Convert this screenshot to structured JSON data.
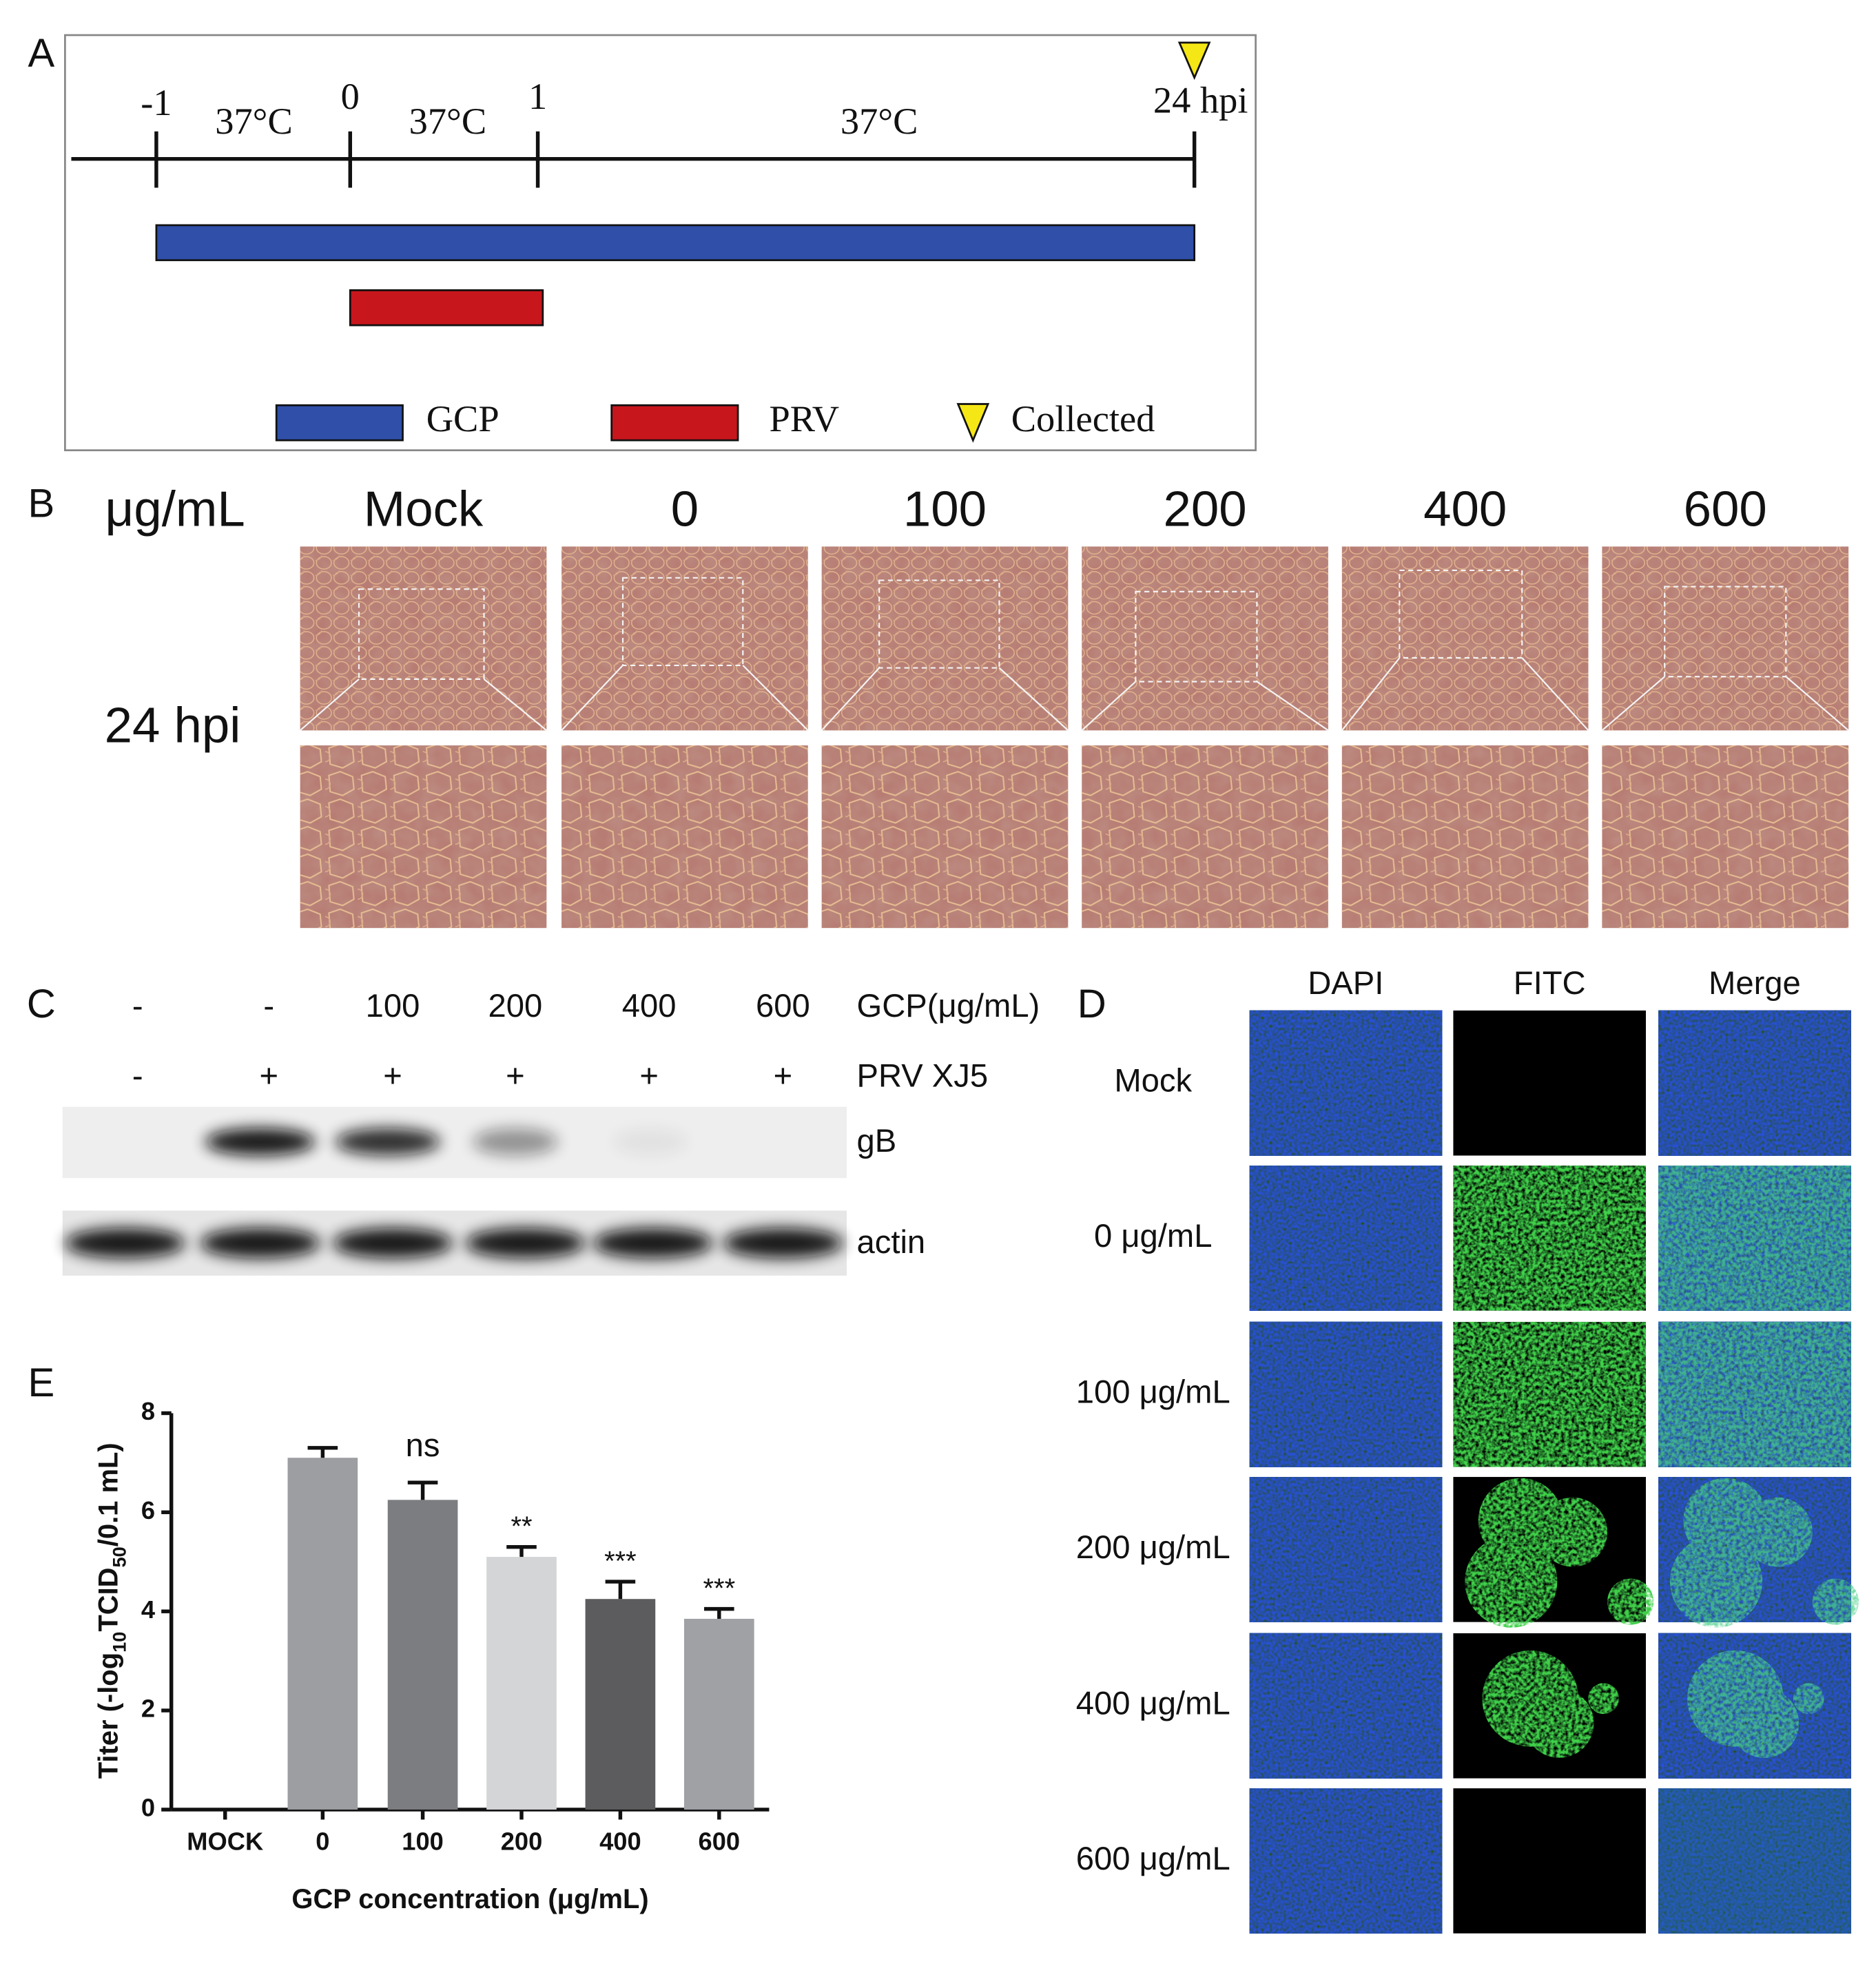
{
  "panel_a": {
    "label": "A",
    "timepoints": [
      "-1",
      "0",
      "1",
      "24 hpi"
    ],
    "temperatures": [
      "37°C",
      "37°C",
      "37°C"
    ],
    "legend": [
      "GCP",
      "PRV",
      "Collected"
    ]
  },
  "panel_b": {
    "label": "B",
    "unit": "μg/mL",
    "columns": [
      "Mock",
      "0",
      "100",
      "200",
      "400",
      "600"
    ],
    "row_label": "24 hpi"
  },
  "panel_c": {
    "label": "C",
    "gcp_row": [
      "-",
      "-",
      "100",
      "200",
      "400",
      "600"
    ],
    "gcp_title": "GCP(μg/mL)",
    "prv_row": [
      "-",
      "+",
      "+",
      "+",
      "+",
      "+"
    ],
    "prv_title": "PRV XJ5",
    "blots": [
      "gB",
      "actin"
    ]
  },
  "panel_d": {
    "label": "D",
    "columns": [
      "DAPI",
      "FITC",
      "Merge"
    ],
    "rows": [
      "Mock",
      "0 μg/mL",
      "100 μg/mL",
      "200 μg/mL",
      "400 μg/mL",
      "600 μg/mL"
    ]
  },
  "chart_data": {
    "type": "bar",
    "panel_label": "E",
    "categories": [
      "MOCK",
      "0",
      "100",
      "200",
      "400",
      "600"
    ],
    "values": [
      0,
      7.1,
      6.25,
      5.1,
      4.25,
      3.85
    ],
    "errors": [
      null,
      0.2,
      0.35,
      0.2,
      0.35,
      0.2
    ],
    "significance": [
      null,
      null,
      "ns",
      "**",
      "***",
      "***"
    ],
    "colors": [
      "#9d9ea2",
      "#9d9ea2",
      "#7c7d80",
      "#d4d5d6",
      "#5c5c5e",
      "#a0a1a5"
    ],
    "ylim": [
      0,
      8
    ],
    "yticks": [
      0,
      2,
      4,
      6,
      8
    ],
    "x_label": "GCP concentration (μg/mL)",
    "y_label": [
      "Titer (-log",
      "10",
      "TCID",
      "50",
      "/0.1 mL)"
    ]
  }
}
